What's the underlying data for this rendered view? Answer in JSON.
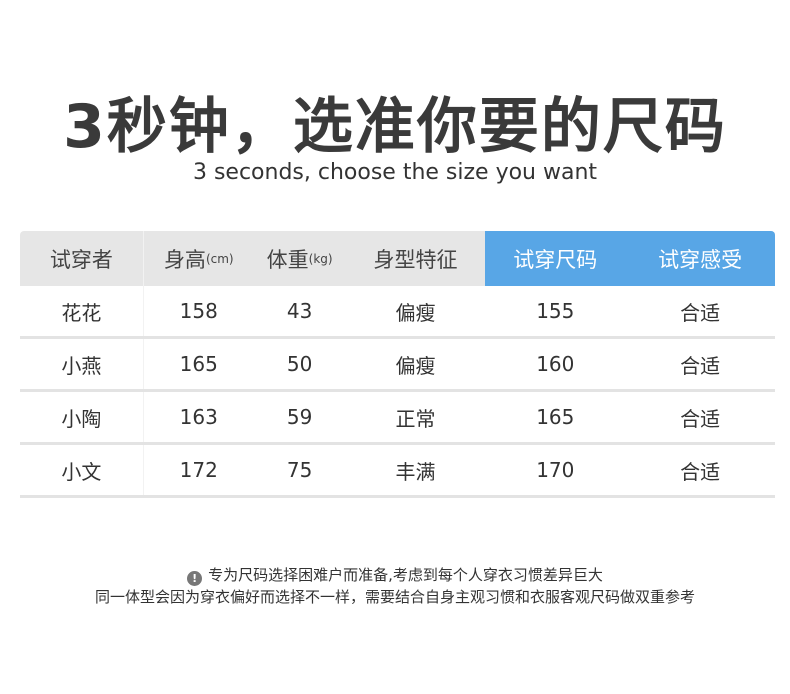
{
  "title": "3秒钟，选准你要的尺码",
  "subtitle": "3 seconds, choose the size you want",
  "table": {
    "headers": [
      {
        "main": "试穿者",
        "unit": ""
      },
      {
        "main": "身高",
        "unit": "(cm)"
      },
      {
        "main": "体重",
        "unit": "(kg)"
      },
      {
        "main": "身型特征",
        "unit": ""
      },
      {
        "main": "试穿尺码",
        "unit": ""
      },
      {
        "main": "试穿感受",
        "unit": ""
      }
    ],
    "highlight_color": "#58a6e6",
    "rows": [
      [
        "花花",
        "158",
        "43",
        "偏瘦",
        "155",
        "合适"
      ],
      [
        "小燕",
        "165",
        "50",
        "偏瘦",
        "160",
        "合适"
      ],
      [
        "小陶",
        "163",
        "59",
        "正常",
        "165",
        "合适"
      ],
      [
        "小文",
        "172",
        "75",
        "丰满",
        "170",
        "合适"
      ]
    ]
  },
  "notes": {
    "icon": "exclamation-icon",
    "icon_glyph": "!",
    "line1": "专为尺码选择困难户而准备,考虑到每个人穿衣习惯差异巨大",
    "line2": "同一体型会因为穿衣偏好而选择不一样，需要结合自身主观习惯和衣服客观尺码做双重参考"
  }
}
